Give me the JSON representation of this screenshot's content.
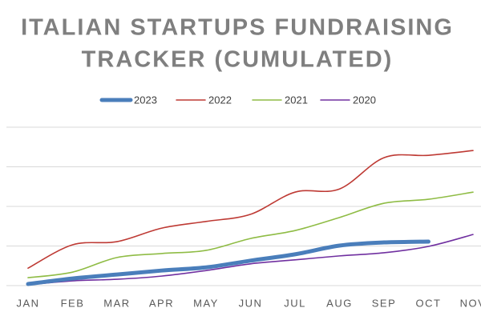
{
  "chart_data": {
    "type": "line",
    "title": [
      "ITALIAN STARTUPS FUNDRAISING",
      "TRACKER (CUMULATED)"
    ],
    "categories": [
      "JAN",
      "FEB",
      "MAR",
      "APR",
      "MAY",
      "JUN",
      "JUL",
      "AUG",
      "SEP",
      "OCT",
      "NOV"
    ],
    "series": [
      {
        "name": "2023",
        "color": "#4a7ebb",
        "values": [
          0.04,
          0.18,
          0.28,
          0.38,
          0.46,
          0.63,
          0.79,
          1.01,
          1.09,
          1.11,
          null
        ]
      },
      {
        "name": "2022",
        "color": "#be3a34",
        "values": [
          0.44,
          1.03,
          1.11,
          1.45,
          1.62,
          1.8,
          2.36,
          2.44,
          3.23,
          3.29,
          3.41
        ]
      },
      {
        "name": "2021",
        "color": "#8fbc45",
        "values": [
          0.2,
          0.34,
          0.71,
          0.81,
          0.89,
          1.19,
          1.39,
          1.72,
          2.08,
          2.18,
          2.36
        ]
      },
      {
        "name": "2020",
        "color": "#7030a0",
        "values": [
          0.02,
          0.12,
          0.16,
          0.24,
          0.38,
          0.55,
          0.65,
          0.75,
          0.83,
          0.99,
          1.29
        ]
      }
    ],
    "ylim": [
      0,
      4
    ],
    "yticks": [
      0,
      1,
      2,
      3,
      4
    ],
    "grid": true,
    "legend": "top"
  }
}
